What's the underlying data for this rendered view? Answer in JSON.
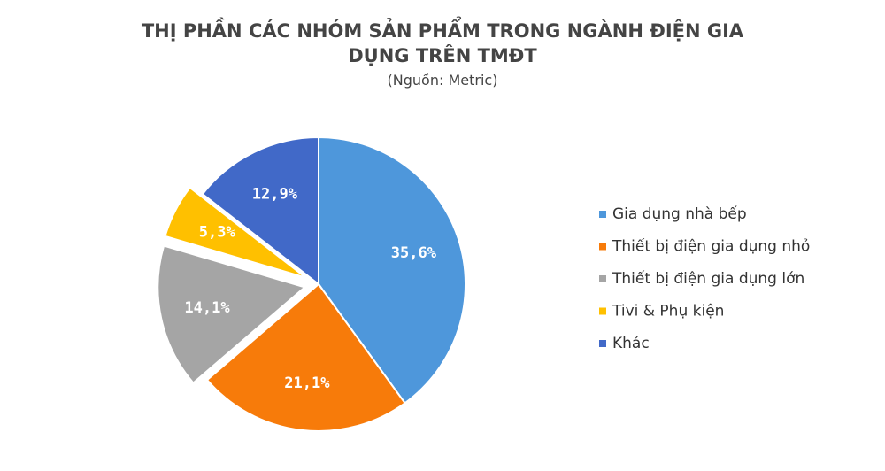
{
  "chart_data": {
    "type": "pie",
    "title": [
      "THỊ PHẦN CÁC NHÓM SẢN PHẨM TRONG NGÀNH ĐIỆN GIA",
      "DỤNG TRÊN TMĐT"
    ],
    "subtitle": "(Nguồn: Metric)",
    "categories": [
      "Gia dụng nhà bếp",
      "Thiết bị điện gia dụng nhỏ",
      "Thiết bị điện gia dụng lớn",
      "Tivi & Phụ kiện",
      "Khác"
    ],
    "values": [
      35.6,
      21.1,
      14.1,
      5.3,
      12.9
    ],
    "value_labels": [
      "35,6%",
      "21,1%",
      "14,1%",
      "5,3%",
      "12,9%"
    ],
    "colors": [
      "#4e97db",
      "#f77b0a",
      "#a5a5a5",
      "#ffc000",
      "#4169c8"
    ],
    "explode": [
      false,
      false,
      true,
      true,
      false
    ],
    "legend": "right"
  }
}
